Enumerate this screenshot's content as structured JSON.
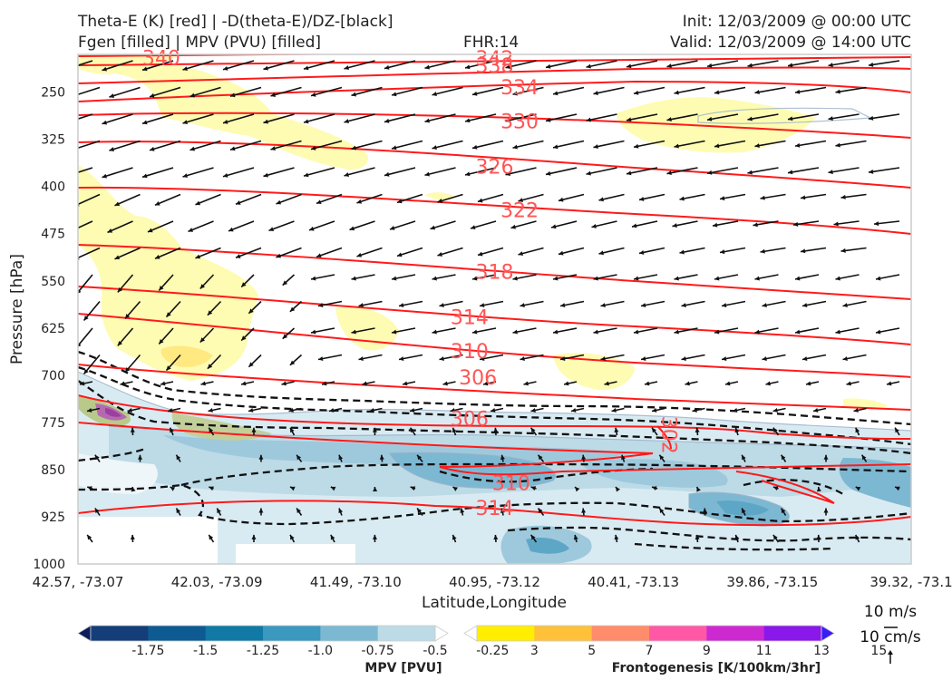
{
  "header": {
    "title_line1": "Theta-E (K) [red] | -D(theta-E)/DZ-[black]",
    "title_line2": "Fgen [filled] | MPV (PVU) [filled]",
    "fhr": "FHR:14",
    "init": "Init: 12/03/2009 @ 00:00 UTC",
    "valid": "Valid: 12/03/2009 @ 14:00 UTC"
  },
  "chart_data": {
    "type": "cross-section",
    "xlabel": "Latitude,Longitude",
    "ylabel": "Pressure [hPa]",
    "x_ticks": [
      "42.57, -73.07",
      "42.03, -73.09",
      "41.49, -73.10",
      "40.95, -73.12",
      "40.41, -73.13",
      "39.86, -73.15",
      "39.32, -73.1"
    ],
    "y_ticks": [
      250,
      325,
      400,
      475,
      550,
      625,
      700,
      775,
      850,
      925,
      1000
    ],
    "ylim": [
      1000,
      190
    ],
    "theta_e_labels": [
      {
        "value": "340",
        "x": 0.1,
        "p": 195
      },
      {
        "value": "342",
        "x": 0.5,
        "p": 196
      },
      {
        "value": "338",
        "x": 0.5,
        "p": 207
      },
      {
        "value": "334",
        "x": 0.53,
        "p": 242
      },
      {
        "value": "330",
        "x": 0.53,
        "p": 296
      },
      {
        "value": "326",
        "x": 0.5,
        "p": 368
      },
      {
        "value": "322",
        "x": 0.53,
        "p": 437
      },
      {
        "value": "318",
        "x": 0.5,
        "p": 535
      },
      {
        "value": "314",
        "x": 0.47,
        "p": 607
      },
      {
        "value": "310",
        "x": 0.47,
        "p": 661
      },
      {
        "value": "306",
        "x": 0.48,
        "p": 703
      },
      {
        "value": "306",
        "x": 0.47,
        "p": 769
      },
      {
        "value": "302",
        "x": 0.71,
        "p": 795
      },
      {
        "value": "310",
        "x": 0.52,
        "p": 871
      },
      {
        "value": "314",
        "x": 0.5,
        "p": 911
      }
    ],
    "mpv_colorbar": {
      "label": "MPV [PVU]",
      "ticks": [
        "-1.75",
        "-1.5",
        "-1.25",
        "-1.0",
        "-0.75",
        "-0.5",
        "-0.25"
      ],
      "colors": [
        "#0a1e5e",
        "#133e7a",
        "#0e5b93",
        "#1179a6",
        "#3b98be",
        "#7db8d2",
        "#bcdbe6",
        "#ffffff"
      ]
    },
    "fgen_colorbar": {
      "label": "Frontogenesis [K/100km/3hr]",
      "ticks": [
        "3",
        "5",
        "7",
        "9",
        "11",
        "13",
        "15"
      ],
      "colors": [
        "#ffffff",
        "#ffee00",
        "#ffc03a",
        "#ff8c6a",
        "#ff59a6",
        "#cc2ad0",
        "#8a18ea",
        "#3a1cf5"
      ]
    },
    "wind_reference": {
      "horizontal": "10 m/s",
      "vertical": "10 cm/s"
    }
  }
}
